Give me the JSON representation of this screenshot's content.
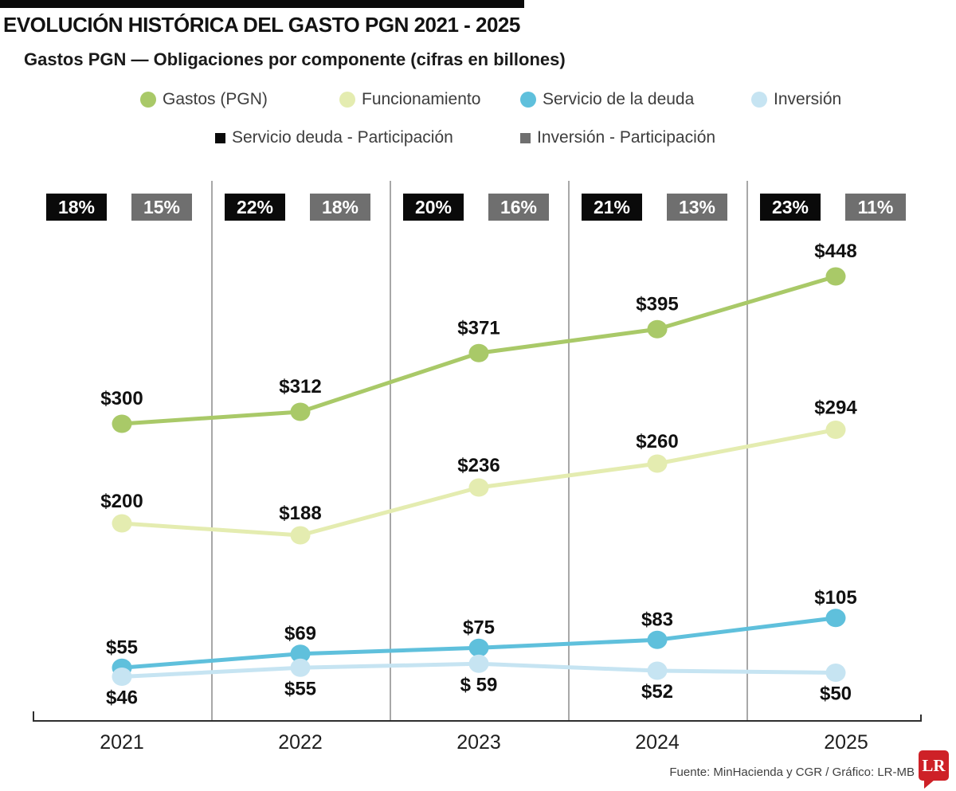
{
  "header": {
    "title": "EVOLUCIÓN HISTÓRICA DEL GASTO PGN 2021 - 2025",
    "subtitle": "Gastos PGN — Obligaciones por componente (cifras en billones)"
  },
  "legend": {
    "series_items": [
      {
        "label": "Gastos (PGN)",
        "color": "#a9c968"
      },
      {
        "label": "Funcionamiento",
        "color": "#e4ecb0"
      },
      {
        "label": "Servicio de la deuda",
        "color": "#5fc0dc"
      },
      {
        "label": "Inversión",
        "color": "#c6e4f2"
      }
    ],
    "participation_items": [
      {
        "label": "Servicio deuda - Participación",
        "color": "#0a0a0a"
      },
      {
        "label": "Inversión - Participación",
        "color": "#6f6f6f"
      }
    ]
  },
  "participation_badges": {
    "black_color": "#0a0a0a",
    "gray_color": "#6f6f6f",
    "groups": [
      {
        "year": "2021",
        "servicio_deuda": "18%",
        "inversion": "15%"
      },
      {
        "year": "2022",
        "servicio_deuda": "22%",
        "inversion": "18%"
      },
      {
        "year": "2023",
        "servicio_deuda": "20%",
        "inversion": "16%"
      },
      {
        "year": "2024",
        "servicio_deuda": "21%",
        "inversion": "13%"
      },
      {
        "year": "2025",
        "servicio_deuda": "23%",
        "inversion": "11%"
      }
    ]
  },
  "chart_data": {
    "type": "line",
    "title": "Gastos PGN — Obligaciones por componente (cifras en billones)",
    "x": [
      "2021",
      "2022",
      "2023",
      "2024",
      "2025"
    ],
    "series": [
      {
        "name": "Gastos (PGN)",
        "color": "#a9c968",
        "values": [
          300,
          312,
          371,
          395,
          448
        ],
        "labels": [
          "$300",
          "$312",
          "$371",
          "$395",
          "$448"
        ],
        "label_position": "above"
      },
      {
        "name": "Funcionamiento",
        "color": "#e4ecb0",
        "values": [
          200,
          188,
          236,
          260,
          294
        ],
        "labels": [
          "$200",
          "$188",
          "$236",
          "$260",
          "$294"
        ],
        "label_position": "above"
      },
      {
        "name": "Servicio de la deuda",
        "color": "#5fc0dc",
        "values": [
          55,
          69,
          75,
          83,
          105
        ],
        "labels": [
          "$55",
          "$69",
          "$75",
          "$83",
          "$105"
        ],
        "label_position": "above"
      },
      {
        "name": "Inversión",
        "color": "#c6e4f2",
        "values": [
          46,
          55,
          59,
          52,
          50
        ],
        "labels": [
          "$46",
          "$55",
          "$ 59",
          "$52",
          "$50"
        ],
        "label_position": "below"
      }
    ],
    "participation_series": [
      {
        "name": "Servicio deuda - Participación",
        "values_pct": [
          18,
          22,
          20,
          21,
          23
        ]
      },
      {
        "name": "Inversión - Participación",
        "values_pct": [
          15,
          18,
          16,
          13,
          11
        ]
      }
    ],
    "units": "billones",
    "ylim": [
      0,
      500
    ],
    "grid": "vertical-year-separators",
    "legend_position": "top"
  },
  "footer": {
    "source": "Fuente: MinHacienda y CGR / Gráfico: LR-MB",
    "logo_text": "LR",
    "logo_color": "#ce2127"
  }
}
